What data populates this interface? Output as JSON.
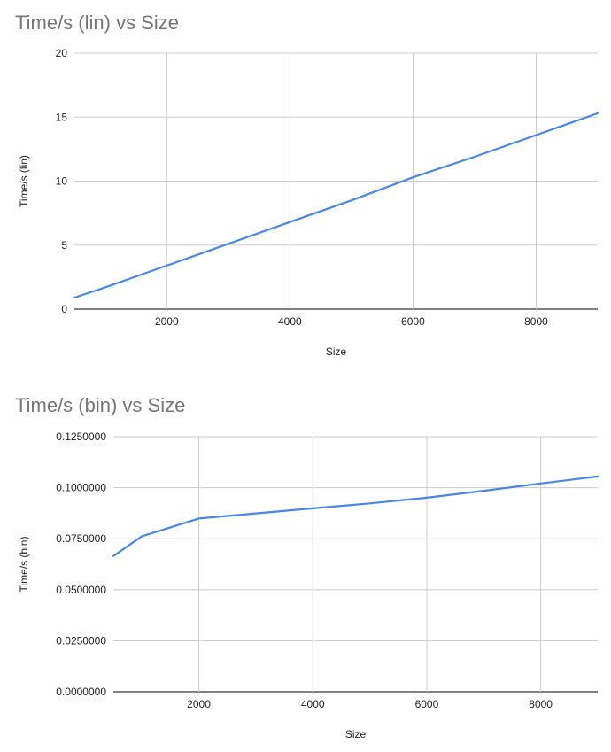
{
  "chart_data": [
    {
      "type": "line",
      "title": "Time/s (lin) vs Size",
      "xlabel": "Size",
      "ylabel": "Time/s (lin)",
      "xlim": [
        500,
        9000
      ],
      "ylim": [
        0,
        20
      ],
      "x_ticks": [
        2000,
        4000,
        6000,
        8000
      ],
      "x_tick_labels": [
        "2000",
        "4000",
        "6000",
        "8000"
      ],
      "y_ticks": [
        0,
        5,
        10,
        15,
        20
      ],
      "y_tick_labels": [
        "0",
        "5",
        "10",
        "15",
        "20"
      ],
      "grid": true,
      "line_color": "#4a86e8",
      "series": [
        {
          "x": [
            500,
            1000,
            2000,
            3000,
            4000,
            5000,
            6000,
            7000,
            8000,
            9000
          ],
          "y": [
            0.9,
            1.7,
            3.4,
            5.1,
            6.8,
            8.5,
            10.3,
            11.9,
            13.6,
            15.3
          ]
        }
      ]
    },
    {
      "type": "line",
      "title": "Time/s (bin) vs Size",
      "xlabel": "Size",
      "ylabel": "Time/s (bin)",
      "xlim": [
        500,
        9000
      ],
      "ylim": [
        0,
        0.125
      ],
      "x_ticks": [
        2000,
        4000,
        6000,
        8000
      ],
      "x_tick_labels": [
        "2000",
        "4000",
        "6000",
        "8000"
      ],
      "y_ticks": [
        0,
        0.025,
        0.05,
        0.075,
        0.1,
        0.125
      ],
      "y_tick_labels": [
        "0.0000000",
        "0.0250000",
        "0.0500000",
        "0.0750000",
        "0.1000000",
        "0.1250000"
      ],
      "grid": true,
      "line_color": "#4a86e8",
      "series": [
        {
          "x": [
            500,
            1000,
            2000,
            3000,
            4000,
            5000,
            6000,
            7000,
            8000,
            9000
          ],
          "y": [
            0.0665,
            0.0762,
            0.0849,
            0.0874,
            0.0899,
            0.0923,
            0.0951,
            0.0985,
            0.1021,
            0.1055
          ]
        }
      ]
    }
  ]
}
